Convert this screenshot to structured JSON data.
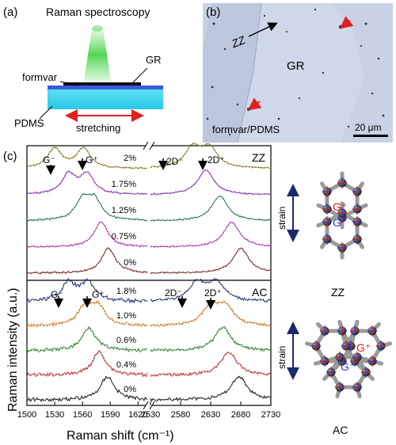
{
  "panel_a": {
    "label": "(a)",
    "title": "Raman spectroscopy",
    "formvar": "formvar",
    "gr": "GR",
    "pdms": "PDMS",
    "stretching": "stretching"
  },
  "panel_b": {
    "label": "(b)",
    "zz": "ZZ",
    "gr": "GR",
    "substrate": "formvar/PDMS",
    "scale": "20 μm"
  },
  "panel_c": {
    "label": "(c)",
    "ylabel": "Raman intensity (a.u.)",
    "xlabel": "Raman shift (cm⁻¹)",
    "zz_label": "ZZ",
    "ac_label": "AC",
    "zz_peaks": {
      "gm": "G⁻",
      "gp": "G⁺",
      "dm": "2D⁻",
      "dp": "2D⁺"
    },
    "ac_peaks": {
      "gm": "G⁻",
      "gp": "G⁺",
      "dm": "2D⁻",
      "dp": "2D⁺"
    }
  },
  "lattice": {
    "zz_caption": "ZZ",
    "ac_caption": "AC",
    "strain": "strain",
    "gp": "G⁺",
    "gm": "G⁻"
  },
  "chart_data": {
    "type": "line",
    "xlabel": "Raman shift (cm⁻¹)",
    "ylabel": "Raman intensity (a.u.)",
    "x_ticks_left": [
      1500,
      1530,
      1560,
      1590,
      1620
    ],
    "x_ticks_right": [
      2530,
      2580,
      2630,
      2680,
      2730
    ],
    "xlim_left": [
      1500,
      1630
    ],
    "xlim_right": [
      2530,
      2730
    ],
    "zz": {
      "strains": [
        "2%",
        "1.75%",
        "1.25%",
        "0.75%",
        "0%"
      ],
      "colors": [
        "#a39a2c",
        "#9b36d4",
        "#2e8a56",
        "#d73bd0",
        "#8b2b2b"
      ],
      "g_peaks": [
        [
          1530,
          1561
        ],
        [
          1545,
          1565
        ],
        [
          1560,
          1573
        ],
        [
          1580
        ],
        [
          1588
        ]
      ],
      "d_peaks": [
        [
          2600,
          2628
        ],
        [
          2622
        ],
        [
          2645
        ],
        [
          2665
        ],
        [
          2680
        ]
      ]
    },
    "ac": {
      "strains": [
        "1.8%",
        "1.0%",
        "0.6%",
        "0.4%",
        "0%"
      ],
      "colors": [
        "#2c3a8e",
        "#f09a3a",
        "#3a9a3a",
        "#e0393a",
        "#222222"
      ],
      "g_peaks": [
        [
          1545,
          1566
        ],
        [
          1563,
          1577
        ],
        [
          1567
        ],
        [
          1578
        ],
        [
          1587
        ]
      ],
      "d_peaks": [
        [
          2608,
          2640
        ],
        [
          2630,
          2655
        ],
        [
          2650
        ],
        [
          2660
        ],
        [
          2677
        ]
      ]
    }
  }
}
